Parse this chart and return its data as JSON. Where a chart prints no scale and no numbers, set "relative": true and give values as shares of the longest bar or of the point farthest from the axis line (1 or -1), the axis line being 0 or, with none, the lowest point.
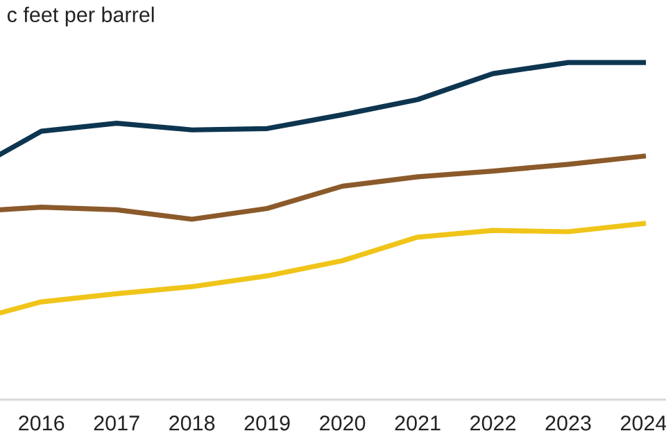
{
  "chart_data": {
    "type": "line",
    "title": "c feet per barrel",
    "relative": true,
    "x": [
      2015.45,
      2016,
      2017,
      2018,
      2019,
      2020,
      2021,
      2022,
      2023,
      2024
    ],
    "xlim": [
      2015.45,
      2024.3
    ],
    "xticks": [
      2016,
      2017,
      2018,
      2019,
      2020,
      2021,
      2022,
      2023,
      2024
    ],
    "series": [
      {
        "color": "#0d3550",
        "values": [
          0.727,
          0.796,
          0.82,
          0.8,
          0.804,
          0.845,
          0.89,
          0.967,
          1.0,
          1.0
        ]
      },
      {
        "color": "#8b5a2b",
        "values": [
          0.563,
          0.571,
          0.563,
          0.535,
          0.567,
          0.633,
          0.661,
          0.678,
          0.698,
          0.722
        ]
      },
      {
        "color": "#f0c419",
        "values": [
          0.257,
          0.29,
          0.314,
          0.335,
          0.367,
          0.412,
          0.482,
          0.502,
          0.498,
          0.522
        ]
      }
    ],
    "legend": false,
    "marker": "none",
    "line_style": "solid"
  }
}
